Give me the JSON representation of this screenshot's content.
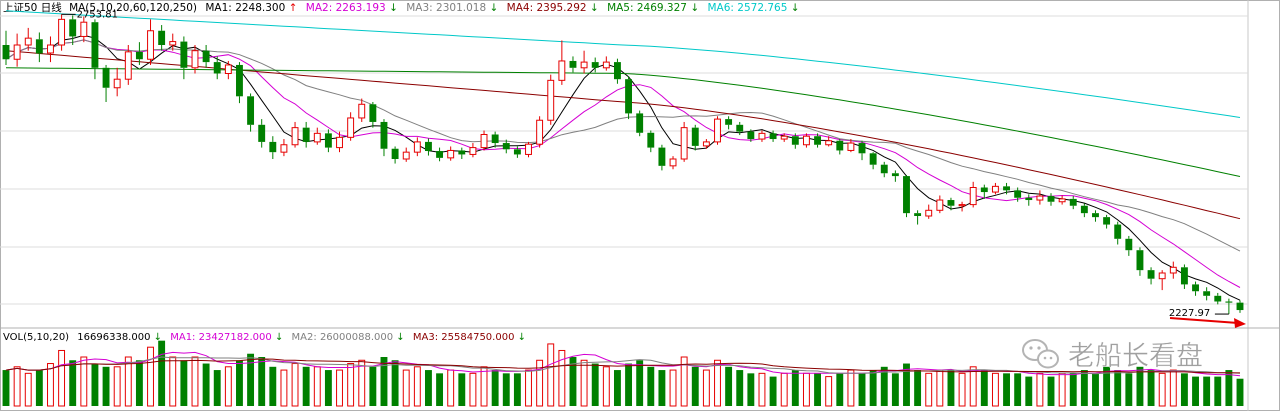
{
  "header": {
    "instrument": "上证50",
    "period": "日线",
    "ma_label": "MA(5,10,20,60,120,250)",
    "items": [
      {
        "label": "MA1:",
        "value": "2248.300",
        "arrow": "↑",
        "color": "#000000"
      },
      {
        "label": "MA2:",
        "value": "2263.193",
        "arrow": "↓",
        "color": "#d400d4"
      },
      {
        "label": "MA3:",
        "value": "2301.018",
        "arrow": "↓",
        "color": "#808080"
      },
      {
        "label": "MA4:",
        "value": "2395.292",
        "arrow": "↓",
        "color": "#8b0000"
      },
      {
        "label": "MA5:",
        "value": "2469.327",
        "arrow": "↓",
        "color": "#008000"
      },
      {
        "label": "MA6:",
        "value": "2572.765",
        "arrow": "↓",
        "color": "#00c8c8"
      }
    ]
  },
  "volume_header": {
    "label": "VOL(5,10,20)",
    "value": "16696338.000",
    "value_arrow": "↓",
    "items": [
      {
        "label": "MA1:",
        "value": "23427182.000",
        "arrow": "↓",
        "color": "#d400d4"
      },
      {
        "label": "MA2:",
        "value": "26000088.000",
        "arrow": "↓",
        "color": "#808080"
      },
      {
        "label": "MA3:",
        "value": "25584750.000",
        "arrow": "↓",
        "color": "#8b0000"
      }
    ]
  },
  "annotations": {
    "high_label": "2753.81",
    "low_label": "2227.97"
  },
  "watermark": {
    "text": "老船长看盘",
    "icon": "wechat-icon"
  },
  "colors": {
    "up": "#e60000",
    "down": "#008000",
    "ma5": "#000000",
    "ma10": "#d400d4",
    "ma20": "#808080",
    "ma60": "#8b0000",
    "ma120": "#008000",
    "ma250": "#00c8c8",
    "arrow": "#e60000"
  },
  "chart_data": {
    "type": "candlestick",
    "price_range": [
      2200,
      2800
    ],
    "candles": [
      [
        2700,
        2675,
        2725,
        2665
      ],
      [
        2675,
        2700,
        2720,
        2662
      ],
      [
        2700,
        2712,
        2730,
        2690
      ],
      [
        2710,
        2685,
        2722,
        2670
      ],
      [
        2686,
        2700,
        2715,
        2670
      ],
      [
        2700,
        2745,
        2753.81,
        2690
      ],
      [
        2745,
        2715,
        2752,
        2700
      ],
      [
        2715,
        2740,
        2750,
        2705
      ],
      [
        2740,
        2660,
        2745,
        2640
      ],
      [
        2660,
        2625,
        2665,
        2600
      ],
      [
        2625,
        2640,
        2660,
        2610
      ],
      [
        2640,
        2688,
        2700,
        2630
      ],
      [
        2688,
        2675,
        2705,
        2665
      ],
      [
        2675,
        2725,
        2745,
        2665
      ],
      [
        2725,
        2700,
        2735,
        2690
      ],
      [
        2700,
        2706,
        2720,
        2690
      ],
      [
        2706,
        2660,
        2715,
        2640
      ],
      [
        2660,
        2690,
        2700,
        2650
      ],
      [
        2690,
        2670,
        2700,
        2660
      ],
      [
        2670,
        2650,
        2680,
        2640
      ],
      [
        2650,
        2665,
        2672,
        2640
      ],
      [
        2665,
        2610,
        2670,
        2598
      ],
      [
        2610,
        2560,
        2615,
        2548
      ],
      [
        2560,
        2530,
        2570,
        2520
      ],
      [
        2530,
        2512,
        2540,
        2500
      ],
      [
        2512,
        2525,
        2535,
        2505
      ],
      [
        2525,
        2555,
        2565,
        2520
      ],
      [
        2555,
        2530,
        2565,
        2520
      ],
      [
        2530,
        2545,
        2555,
        2525
      ],
      [
        2545,
        2520,
        2552,
        2512
      ],
      [
        2520,
        2538,
        2548,
        2512
      ],
      [
        2538,
        2572,
        2582,
        2532
      ],
      [
        2572,
        2596,
        2606,
        2565
      ],
      [
        2596,
        2565,
        2600,
        2555
      ],
      [
        2565,
        2518,
        2570,
        2505
      ],
      [
        2518,
        2500,
        2522,
        2492
      ],
      [
        2500,
        2512,
        2520,
        2495
      ],
      [
        2512,
        2530,
        2538,
        2505
      ],
      [
        2530,
        2514,
        2536,
        2506
      ],
      [
        2514,
        2502,
        2520,
        2496
      ],
      [
        2502,
        2515,
        2522,
        2497
      ],
      [
        2515,
        2508,
        2520,
        2500
      ],
      [
        2508,
        2520,
        2528,
        2503
      ],
      [
        2520,
        2543,
        2550,
        2515
      ],
      [
        2543,
        2528,
        2548,
        2520
      ],
      [
        2528,
        2517,
        2534,
        2510
      ],
      [
        2517,
        2508,
        2522,
        2502
      ],
      [
        2508,
        2526,
        2530,
        2503
      ],
      [
        2526,
        2568,
        2575,
        2520
      ],
      [
        2568,
        2638,
        2648,
        2560
      ],
      [
        2638,
        2672,
        2708,
        2630
      ],
      [
        2672,
        2660,
        2680,
        2652
      ],
      [
        2660,
        2670,
        2690,
        2650
      ],
      [
        2670,
        2660,
        2678,
        2652
      ],
      [
        2660,
        2670,
        2680,
        2655
      ],
      [
        2670,
        2640,
        2676,
        2632
      ],
      [
        2640,
        2580,
        2645,
        2570
      ],
      [
        2580,
        2546,
        2585,
        2540
      ],
      [
        2546,
        2520,
        2550,
        2512
      ],
      [
        2520,
        2488,
        2525,
        2480
      ],
      [
        2488,
        2500,
        2505,
        2482
      ],
      [
        2500,
        2555,
        2565,
        2495
      ],
      [
        2555,
        2523,
        2560,
        2515
      ],
      [
        2523,
        2530,
        2535,
        2518
      ],
      [
        2530,
        2570,
        2575,
        2525
      ],
      [
        2570,
        2560,
        2575,
        2552
      ],
      [
        2560,
        2548,
        2565,
        2542
      ],
      [
        2548,
        2535,
        2552,
        2530
      ],
      [
        2535,
        2545,
        2550,
        2530
      ],
      [
        2545,
        2535,
        2550,
        2530
      ],
      [
        2535,
        2540,
        2545,
        2530
      ],
      [
        2540,
        2525,
        2545,
        2518
      ],
      [
        2525,
        2540,
        2545,
        2520
      ],
      [
        2540,
        2525,
        2545,
        2520
      ],
      [
        2525,
        2532,
        2540,
        2522
      ],
      [
        2532,
        2515,
        2535,
        2508
      ],
      [
        2515,
        2528,
        2535,
        2512
      ],
      [
        2528,
        2510,
        2532,
        2498
      ],
      [
        2510,
        2490,
        2512,
        2482
      ],
      [
        2490,
        2475,
        2495,
        2468
      ],
      [
        2475,
        2470,
        2480,
        2460
      ],
      [
        2470,
        2405,
        2472,
        2398
      ],
      [
        2405,
        2400,
        2410,
        2385
      ],
      [
        2400,
        2410,
        2420,
        2395
      ],
      [
        2410,
        2428,
        2436,
        2405
      ],
      [
        2428,
        2418,
        2432,
        2410
      ],
      [
        2418,
        2420,
        2425,
        2408
      ],
      [
        2420,
        2450,
        2460,
        2415
      ],
      [
        2450,
        2442,
        2455,
        2430
      ],
      [
        2442,
        2452,
        2458,
        2438
      ],
      [
        2452,
        2445,
        2458,
        2438
      ],
      [
        2445,
        2432,
        2450,
        2425
      ],
      [
        2432,
        2428,
        2438,
        2418
      ],
      [
        2428,
        2435,
        2445,
        2420
      ],
      [
        2435,
        2425,
        2440,
        2418
      ],
      [
        2425,
        2430,
        2436,
        2420
      ],
      [
        2430,
        2418,
        2435,
        2412
      ],
      [
        2418,
        2405,
        2422,
        2398
      ],
      [
        2405,
        2398,
        2410,
        2390
      ],
      [
        2398,
        2385,
        2402,
        2378
      ],
      [
        2385,
        2360,
        2390,
        2350
      ],
      [
        2360,
        2340,
        2365,
        2330
      ],
      [
        2340,
        2305,
        2345,
        2295
      ],
      [
        2305,
        2290,
        2310,
        2280
      ],
      [
        2290,
        2300,
        2305,
        2270
      ],
      [
        2300,
        2310,
        2320,
        2290
      ],
      [
        2310,
        2280,
        2315,
        2272
      ],
      [
        2280,
        2268,
        2285,
        2260
      ],
      [
        2268,
        2260,
        2275,
        2252
      ],
      [
        2260,
        2250,
        2265,
        2245
      ],
      [
        2250,
        2248,
        2255,
        2227.97
      ],
      [
        2248,
        2235,
        2252,
        2230
      ]
    ],
    "volume_range": [
      0,
      60000000
    ],
    "volumes": [
      22,
      24,
      20,
      22,
      26,
      34,
      28,
      30,
      26,
      24,
      24,
      30,
      28,
      36,
      40,
      30,
      28,
      30,
      26,
      22,
      24,
      28,
      32,
      30,
      24,
      22,
      26,
      24,
      24,
      22,
      22,
      26,
      28,
      24,
      30,
      28,
      22,
      24,
      22,
      20,
      22,
      20,
      20,
      24,
      22,
      20,
      20,
      22,
      28,
      38,
      34,
      30,
      28,
      26,
      24,
      22,
      26,
      28,
      24,
      22,
      22,
      30,
      24,
      22,
      28,
      24,
      22,
      20,
      20,
      18,
      20,
      22,
      20,
      20,
      18,
      20,
      22,
      20,
      22,
      24,
      20,
      26,
      22,
      20,
      22,
      22,
      20,
      24,
      22,
      20,
      20,
      20,
      18,
      20,
      18,
      20,
      20,
      22,
      20,
      24,
      22,
      20,
      24,
      22,
      20,
      22,
      20,
      18,
      18,
      18,
      22,
      16.7
    ]
  }
}
